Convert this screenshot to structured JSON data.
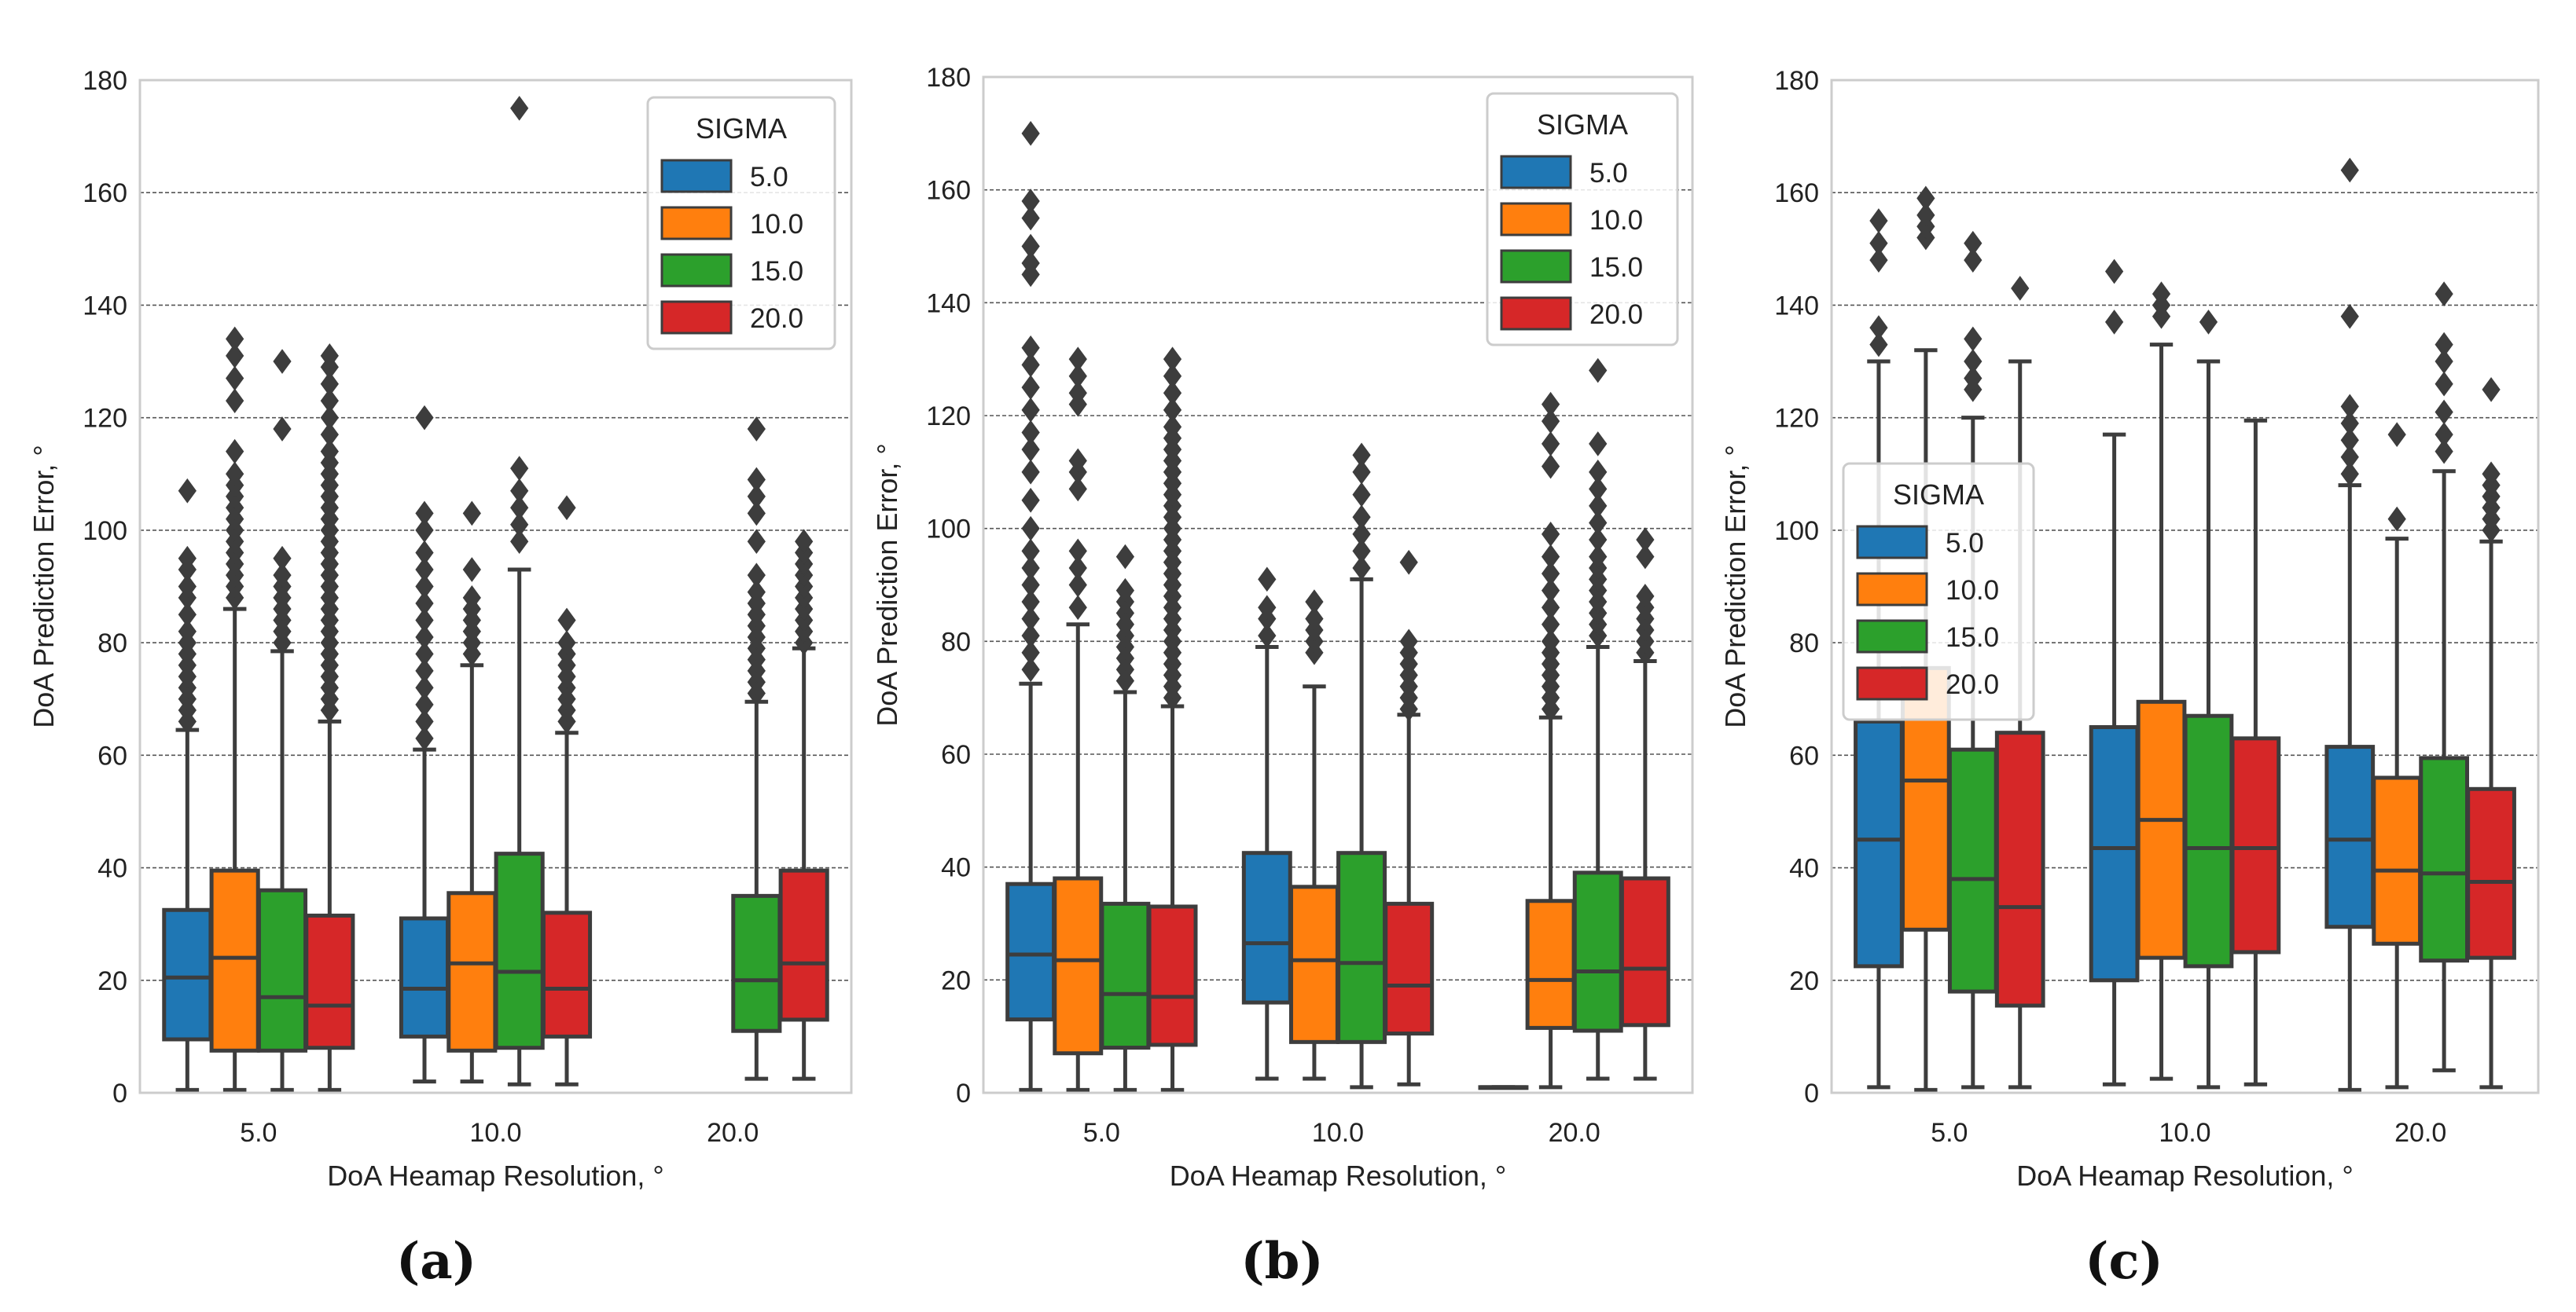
{
  "colors": {
    "hue": [
      "#1f77b4",
      "#ff7f0e",
      "#2ca02c",
      "#d62728"
    ],
    "edge": "#3d3d3d",
    "grid": "#555555",
    "frame": "#cccccc"
  },
  "chart_data": [
    {
      "type": "box",
      "caption": "(a)",
      "xlabel": "DoA Heamap Resolution, °",
      "ylabel": "DoA Prediction Error, °",
      "ylim": [
        0,
        180
      ],
      "yticks": [
        0,
        20,
        40,
        60,
        80,
        100,
        120,
        140,
        160,
        180
      ],
      "categories": [
        "5.0",
        "10.0",
        "20.0"
      ],
      "legend": {
        "title": "SIGMA",
        "entries": [
          "5.0",
          "10.0",
          "15.0",
          "20.0"
        ],
        "loc": "upper right"
      },
      "series": [
        {
          "name": "5.0",
          "boxes": [
            {
              "cat": 0,
              "wlo": 0.5,
              "q1": 9.5,
              "med": 20.5,
              "q3": 32.5,
              "whi": 64.5,
              "fliers": [
                66,
                68,
                70,
                72,
                74,
                76,
                78,
                80,
                82,
                85,
                88,
                90,
                93,
                95,
                107
              ]
            },
            {
              "cat": 1,
              "wlo": 2,
              "q1": 10,
              "med": 18.5,
              "q3": 31,
              "whi": 61,
              "fliers": [
                63,
                66,
                69,
                72,
                75,
                78,
                81,
                84,
                87,
                90,
                93,
                96,
                100,
                103,
                120
              ]
            },
            null
          ]
        },
        {
          "name": "10.0",
          "boxes": [
            {
              "cat": 0,
              "wlo": 0.5,
              "q1": 7.5,
              "med": 24,
              "q3": 39.5,
              "whi": 86,
              "fliers": [
                88,
                90,
                92,
                94,
                96,
                98,
                100,
                102,
                104,
                106,
                108,
                110,
                114,
                123,
                127,
                131,
                134
              ]
            },
            {
              "cat": 1,
              "wlo": 2,
              "q1": 7.5,
              "med": 23,
              "q3": 35.5,
              "whi": 76,
              "fliers": [
                78,
                80,
                82,
                84,
                86,
                88,
                93,
                103
              ]
            },
            null
          ]
        },
        {
          "name": "15.0",
          "boxes": [
            {
              "cat": 0,
              "wlo": 0.5,
              "q1": 7.5,
              "med": 17,
              "q3": 36,
              "whi": 78.5,
              "fliers": [
                80,
                82,
                84,
                86,
                88,
                90,
                92,
                95,
                118,
                130
              ]
            },
            {
              "cat": 1,
              "wlo": 1.5,
              "q1": 8,
              "med": 21.5,
              "q3": 42.5,
              "whi": 93,
              "fliers": [
                98,
                101,
                104,
                107,
                111,
                175
              ]
            },
            {
              "cat": 2,
              "wlo": 2.5,
              "q1": 11,
              "med": 20,
              "q3": 35,
              "whi": 69.5,
              "fliers": [
                71,
                73,
                75,
                77,
                79,
                81,
                83,
                85,
                87,
                89,
                92,
                98,
                103,
                106,
                109,
                118
              ]
            }
          ]
        },
        {
          "name": "20.0",
          "boxes": [
            {
              "cat": 0,
              "wlo": 0.5,
              "q1": 8,
              "med": 15.5,
              "q3": 31.5,
              "whi": 66,
              "fliers": [
                68,
                70,
                72,
                74,
                76,
                78,
                80,
                82,
                84,
                86,
                88,
                90,
                92,
                94,
                96,
                98,
                100,
                102,
                104,
                106,
                108,
                110,
                112,
                114,
                117,
                120,
                123,
                126,
                129,
                131
              ]
            },
            {
              "cat": 1,
              "wlo": 1.5,
              "q1": 10,
              "med": 18.5,
              "q3": 32,
              "whi": 64,
              "fliers": [
                66,
                68,
                70,
                72,
                74,
                76,
                78,
                80,
                84,
                104
              ]
            },
            {
              "cat": 2,
              "wlo": 2.5,
              "q1": 13,
              "med": 23,
              "q3": 39.5,
              "whi": 79,
              "fliers": [
                80,
                82,
                84,
                86,
                88,
                90,
                92,
                94,
                96,
                98
              ]
            }
          ]
        }
      ]
    },
    {
      "type": "box",
      "caption": "(b)",
      "xlabel": "DoA Heamap Resolution, °",
      "ylabel": "DoA Prediction Error, °",
      "ylim": [
        0,
        180
      ],
      "yticks": [
        0,
        20,
        40,
        60,
        80,
        100,
        120,
        140,
        160,
        180
      ],
      "categories": [
        "5.0",
        "10.0",
        "20.0"
      ],
      "legend": {
        "title": "SIGMA",
        "entries": [
          "5.0",
          "10.0",
          "15.0",
          "20.0"
        ],
        "loc": "upper right"
      },
      "series": [
        {
          "name": "5.0",
          "boxes": [
            {
              "cat": 0,
              "wlo": 0.5,
              "q1": 13,
              "med": 24.5,
              "q3": 37,
              "whi": 72.5,
              "fliers": [
                75,
                78,
                81,
                84,
                87,
                90,
                93,
                96,
                100,
                105,
                110,
                114,
                117,
                121,
                125,
                129,
                132,
                145,
                147,
                150,
                155,
                158,
                170
              ]
            },
            {
              "cat": 1,
              "wlo": 2.5,
              "q1": 16,
              "med": 26.5,
              "q3": 42.5,
              "whi": 79,
              "fliers": [
                81,
                84,
                86,
                91
              ]
            },
            {
              "cat": 2,
              "wlo": 1,
              "q1": 1,
              "med": 1,
              "q3": 1,
              "whi": 1,
              "fliers": []
            }
          ]
        },
        {
          "name": "10.0",
          "boxes": [
            {
              "cat": 0,
              "wlo": 0.5,
              "q1": 7,
              "med": 23.5,
              "q3": 38,
              "whi": 83,
              "fliers": [
                86,
                90,
                93,
                96,
                107,
                110,
                112,
                122,
                124,
                127,
                130
              ]
            },
            {
              "cat": 1,
              "wlo": 2.5,
              "q1": 9,
              "med": 23.5,
              "q3": 36.5,
              "whi": 72,
              "fliers": [
                78,
                80,
                82,
                84,
                87
              ]
            },
            {
              "cat": 2,
              "wlo": 1,
              "q1": 11.5,
              "med": 20,
              "q3": 34,
              "whi": 66.5,
              "fliers": [
                68,
                70,
                72,
                74,
                76,
                78,
                80,
                83,
                86,
                89,
                92,
                95,
                99,
                111,
                115,
                119,
                122
              ]
            }
          ]
        },
        {
          "name": "15.0",
          "boxes": [
            {
              "cat": 0,
              "wlo": 0.5,
              "q1": 8,
              "med": 17.5,
              "q3": 33.5,
              "whi": 71,
              "fliers": [
                73,
                75,
                77,
                79,
                81,
                83,
                85,
                87,
                89,
                95
              ]
            },
            {
              "cat": 1,
              "wlo": 1,
              "q1": 9,
              "med": 23,
              "q3": 42.5,
              "whi": 91,
              "fliers": [
                93,
                96,
                99,
                102,
                106,
                110,
                113
              ]
            },
            {
              "cat": 2,
              "wlo": 2.5,
              "q1": 11,
              "med": 21.5,
              "q3": 39,
              "whi": 79,
              "fliers": [
                81,
                83,
                85,
                87,
                89,
                91,
                93,
                95,
                98,
                101,
                104,
                107,
                110,
                115,
                128
              ]
            }
          ]
        },
        {
          "name": "20.0",
          "boxes": [
            {
              "cat": 0,
              "wlo": 0.5,
              "q1": 8.5,
              "med": 17,
              "q3": 33,
              "whi": 68.5,
              "fliers": [
                70,
                72,
                74,
                76,
                78,
                80,
                82,
                84,
                86,
                88,
                90,
                92,
                94,
                96,
                98,
                100,
                102,
                104,
                106,
                108,
                110,
                112,
                114,
                116,
                118,
                121,
                124,
                127,
                130
              ]
            },
            {
              "cat": 1,
              "wlo": 1.5,
              "q1": 10.5,
              "med": 19,
              "q3": 33.5,
              "whi": 67,
              "fliers": [
                68,
                70,
                72,
                74,
                76,
                78,
                80,
                94
              ]
            },
            {
              "cat": 2,
              "wlo": 2.5,
              "q1": 12,
              "med": 22,
              "q3": 38,
              "whi": 76.5,
              "fliers": [
                78,
                80,
                82,
                84,
                86,
                88,
                95,
                98
              ]
            }
          ]
        }
      ]
    },
    {
      "type": "box",
      "caption": "(c)",
      "xlabel": "DoA Heamap Resolution, °",
      "ylabel": "DoA Prediction Error, °",
      "ylim": [
        0,
        180
      ],
      "yticks": [
        0,
        20,
        40,
        60,
        80,
        100,
        120,
        140,
        160,
        180
      ],
      "categories": [
        "5.0",
        "10.0",
        "20.0"
      ],
      "legend": {
        "title": "SIGMA",
        "entries": [
          "5.0",
          "10.0",
          "15.0",
          "20.0"
        ],
        "loc": "center left"
      },
      "series": [
        {
          "name": "5.0",
          "boxes": [
            {
              "cat": 0,
              "wlo": 1,
              "q1": 22.5,
              "med": 45,
              "q3": 66,
              "whi": 130,
              "fliers": [
                133,
                136,
                148,
                151,
                155
              ]
            },
            {
              "cat": 1,
              "wlo": 1.5,
              "q1": 20,
              "med": 43.5,
              "q3": 65,
              "whi": 117,
              "fliers": [
                137,
                146
              ]
            },
            {
              "cat": 2,
              "wlo": 0.5,
              "q1": 29.5,
              "med": 45,
              "q3": 61.5,
              "whi": 108,
              "fliers": [
                110,
                113,
                116,
                119,
                122,
                138,
                164
              ]
            }
          ]
        },
        {
          "name": "10.0",
          "boxes": [
            {
              "cat": 0,
              "wlo": 0.5,
              "q1": 29,
              "med": 55.5,
              "q3": 75.5,
              "whi": 132,
              "fliers": [
                152,
                154,
                156,
                159
              ]
            },
            {
              "cat": 1,
              "wlo": 2.5,
              "q1": 24,
              "med": 48.5,
              "q3": 69.5,
              "whi": 133,
              "fliers": [
                138,
                140,
                142
              ]
            },
            {
              "cat": 2,
              "wlo": 1,
              "q1": 26.5,
              "med": 39.5,
              "q3": 56,
              "whi": 98.5,
              "fliers": [
                102,
                117
              ]
            }
          ]
        },
        {
          "name": "15.0",
          "boxes": [
            {
              "cat": 0,
              "wlo": 1,
              "q1": 18,
              "med": 38,
              "q3": 61,
              "whi": 120,
              "fliers": [
                125,
                127,
                130,
                134,
                148,
                151
              ]
            },
            {
              "cat": 1,
              "wlo": 1,
              "q1": 22.5,
              "med": 43.5,
              "q3": 67,
              "whi": 130,
              "fliers": [
                137
              ]
            },
            {
              "cat": 2,
              "wlo": 4,
              "q1": 23.5,
              "med": 39,
              "q3": 59.5,
              "whi": 110.5,
              "fliers": [
                114,
                117,
                121,
                126,
                130,
                133,
                142
              ]
            }
          ]
        },
        {
          "name": "20.0",
          "boxes": [
            {
              "cat": 0,
              "wlo": 1,
              "q1": 15.5,
              "med": 33,
              "q3": 64,
              "whi": 130,
              "fliers": [
                143
              ]
            },
            {
              "cat": 1,
              "wlo": 1.5,
              "q1": 25,
              "med": 43.5,
              "q3": 63,
              "whi": 119.5,
              "fliers": []
            },
            {
              "cat": 2,
              "wlo": 1,
              "q1": 24,
              "med": 37.5,
              "q3": 54,
              "whi": 98,
              "fliers": [
                100,
                102,
                104,
                106,
                108,
                110,
                125
              ]
            }
          ]
        }
      ]
    }
  ]
}
